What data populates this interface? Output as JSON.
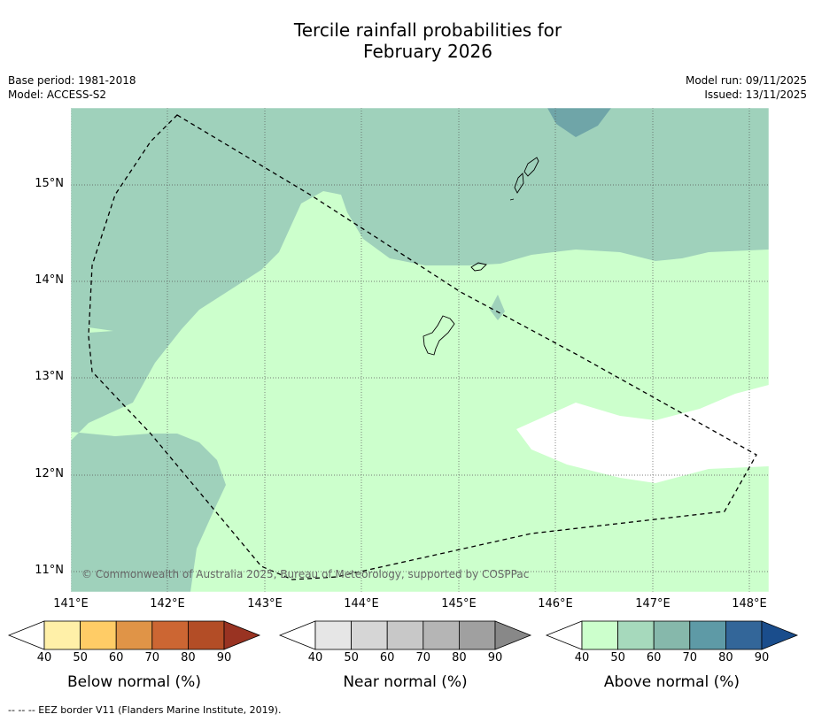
{
  "title_line1": "Tercile rainfall probabilities for",
  "title_line2": "February 2026",
  "base_period": "Base period: 1981-2018",
  "model": "Model: ACCESS-S2",
  "model_run": "Model run: 09/11/2025",
  "issued": "Issued: 13/11/2025",
  "copyright": "© Commonwealth of Australia 2025, Bureau of Meteorology, supported by COSPPac",
  "footnote": "--  --  -- EEZ border V11 (Flanders Marine Institute, 2019).",
  "lat_ticks": [
    "15°N",
    "14°N",
    "13°N",
    "12°N",
    "11°N"
  ],
  "lon_ticks": [
    "141°E",
    "142°E",
    "143°E",
    "144°E",
    "145°E",
    "146°E",
    "147°E",
    "148°E"
  ],
  "colorbars": [
    {
      "title": "Below normal (%)",
      "labels": [
        "40",
        "50",
        "60",
        "70",
        "80",
        "90"
      ],
      "colors": [
        "#ffffff",
        "#fff0a8",
        "#ffcc66",
        "#e09447",
        "#cc6633",
        "#b34d26",
        "#993322"
      ]
    },
    {
      "title": "Near normal (%)",
      "labels": [
        "40",
        "50",
        "60",
        "70",
        "80",
        "90"
      ],
      "colors": [
        "#ffffff",
        "#e6e6e6",
        "#d6d6d6",
        "#c8c8c8",
        "#b5b5b5",
        "#a0a0a0",
        "#888888"
      ]
    },
    {
      "title": "Above normal (%)",
      "labels": [
        "40",
        "50",
        "60",
        "70",
        "80",
        "90"
      ],
      "colors": [
        "#ffffff",
        "#ccffcc",
        "#a6d9bc",
        "#86b8ab",
        "#5e9aa6",
        "#336699",
        "#1a4d8c"
      ]
    }
  ]
}
